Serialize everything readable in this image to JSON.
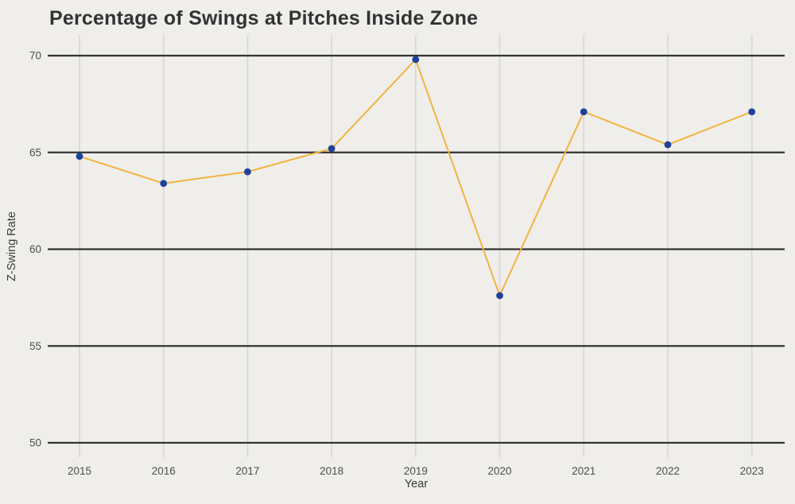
{
  "chart_data": {
    "type": "line",
    "title": "Percentage of Swings at Pitches Inside Zone",
    "xlabel": "Year",
    "ylabel": "Z-Swing Rate",
    "categories": [
      "2015",
      "2016",
      "2017",
      "2018",
      "2019",
      "2020",
      "2021",
      "2022",
      "2023"
    ],
    "series": [
      {
        "name": "Z-Swing Rate",
        "values": [
          64.8,
          63.4,
          64.0,
          65.2,
          69.8,
          57.6,
          67.1,
          65.4,
          67.1
        ]
      }
    ],
    "yticks": [
      50,
      55,
      60,
      65,
      70
    ],
    "ylim": [
      49.3,
      71.1
    ],
    "grid": {
      "horizontal_major": true,
      "vertical_minor": true
    },
    "legend_position": "none",
    "colors": {
      "line": "#F1B43F",
      "point": "#1D429B",
      "background": "#EFEEEB",
      "major_grid": "#333333",
      "minor_grid": "#D9D8D5",
      "title_text": "#333333",
      "axis_title_text": "#3A3A3A",
      "tick_text": "#4D4D4D"
    }
  }
}
